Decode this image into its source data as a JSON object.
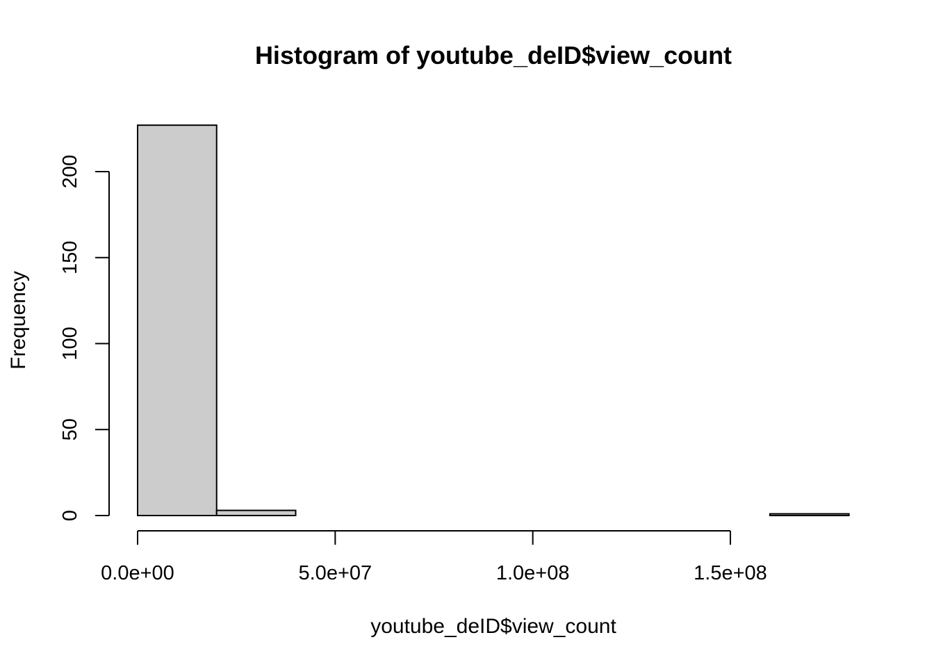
{
  "chart_data": {
    "type": "bar",
    "title": "Histogram of youtube_deID$view_count",
    "xlabel": "youtube_deID$view_count",
    "ylabel": "Frequency",
    "bar_color": "#cccccc",
    "bar_stroke": "#000000",
    "bin_edges": [
      0,
      20000000,
      40000000,
      60000000,
      80000000,
      100000000,
      120000000,
      140000000,
      160000000,
      180000000
    ],
    "values": [
      227,
      3,
      0,
      0,
      0,
      0,
      0,
      0,
      1
    ],
    "xlim": [
      0,
      180000000
    ],
    "ylim": [
      0,
      227
    ],
    "x_ticks": [
      {
        "value": 0,
        "label": "0.0e+00"
      },
      {
        "value": 50000000,
        "label": "5.0e+07"
      },
      {
        "value": 100000000,
        "label": "1.0e+08"
      },
      {
        "value": 150000000,
        "label": "1.5e+08"
      }
    ],
    "y_ticks": [
      {
        "value": 0,
        "label": "0"
      },
      {
        "value": 50,
        "label": "50"
      },
      {
        "value": 100,
        "label": "100"
      },
      {
        "value": 150,
        "label": "150"
      },
      {
        "value": 200,
        "label": "200"
      }
    ],
    "grid": false,
    "legend": "none"
  }
}
